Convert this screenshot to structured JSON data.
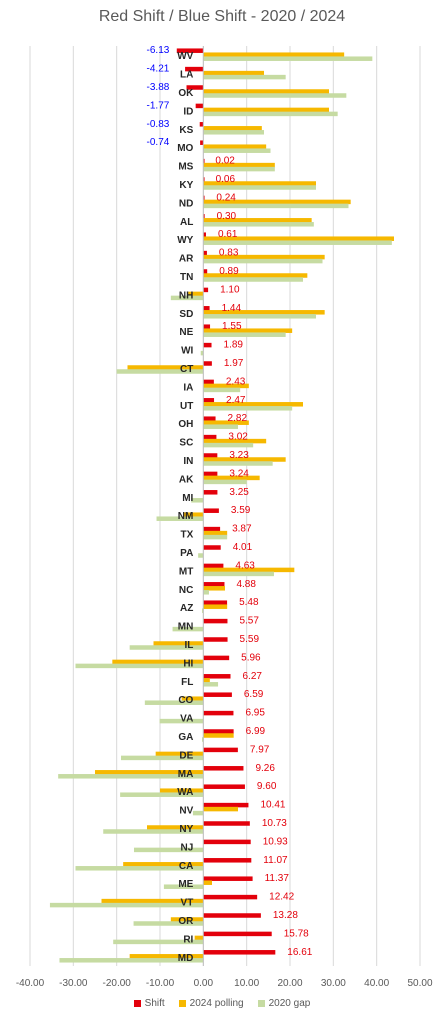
{
  "chart_data": {
    "type": "bar",
    "title": "Red Shift / Blue Shift - 2020 / 2024",
    "xlim": [
      -40,
      50
    ],
    "xticks": [
      "-40.00",
      "-30.00",
      "-20.00",
      "-10.00",
      "0.00",
      "10.00",
      "20.00",
      "30.00",
      "40.00",
      "50.00"
    ],
    "grid": "vertical",
    "legend_position": "bottom",
    "categories": [
      "WV",
      "LA",
      "OK",
      "ID",
      "KS",
      "MO",
      "MS",
      "KY",
      "ND",
      "AL",
      "WY",
      "AR",
      "TN",
      "NH",
      "SD",
      "NE",
      "WI",
      "CT",
      "IA",
      "UT",
      "OH",
      "SC",
      "IN",
      "AK",
      "MI",
      "NM",
      "TX",
      "PA",
      "MT",
      "NC",
      "AZ",
      "MN",
      "IL",
      "HI",
      "FL",
      "CO",
      "VA",
      "GA",
      "DE",
      "MA",
      "WA",
      "NV",
      "NY",
      "NJ",
      "CA",
      "ME",
      "VT",
      "OR",
      "RI",
      "MD"
    ],
    "shift_labels": [
      "-6.13",
      "-4.21",
      "-3.88",
      "-1.77",
      "-0.83",
      "-0.74",
      "0.02",
      "0.06",
      "0.24",
      "0.30",
      "0.61",
      "0.83",
      "0.89",
      "1.10",
      "1.44",
      "1.55",
      "1.89",
      "1.97",
      "2.43",
      "2.47",
      "2.82",
      "3.02",
      "3.23",
      "3.24",
      "3.25",
      "3.59",
      "3.87",
      "4.01",
      "4.63",
      "4.88",
      "5.48",
      "5.57",
      "5.59",
      "5.96",
      "6.27",
      "6.59",
      "6.95",
      "6.99",
      "7.97",
      "9.26",
      "9.60",
      "10.41",
      "10.73",
      "10.93",
      "11.07",
      "11.37",
      "12.42",
      "13.28",
      "15.78",
      "16.61"
    ],
    "series": [
      {
        "name": "Shift",
        "color": "#e3000b",
        "values": [
          -6.13,
          -4.21,
          -3.88,
          -1.77,
          -0.83,
          -0.74,
          0.02,
          0.06,
          0.24,
          0.3,
          0.61,
          0.83,
          0.89,
          1.1,
          1.44,
          1.55,
          1.89,
          1.97,
          2.43,
          2.47,
          2.82,
          3.02,
          3.23,
          3.24,
          3.25,
          3.59,
          3.87,
          4.01,
          4.63,
          4.88,
          5.48,
          5.57,
          5.59,
          5.96,
          6.27,
          6.59,
          6.95,
          6.99,
          7.97,
          9.26,
          9.6,
          10.41,
          10.73,
          10.93,
          11.07,
          11.37,
          12.42,
          13.28,
          15.78,
          16.61
        ]
      },
      {
        "name": "2024 polling",
        "color": "#f6b800",
        "values": [
          32.5,
          14,
          29,
          29,
          13.5,
          14.5,
          16.5,
          26,
          34,
          25,
          44,
          28,
          24,
          -3.5,
          28,
          20.5,
          0,
          -17.5,
          10.5,
          23,
          10.5,
          14.5,
          19,
          13,
          0,
          -4.5,
          5.5,
          0,
          21,
          5,
          5.5,
          0,
          -11.5,
          -21,
          1.5,
          -5,
          0,
          7,
          -11,
          -25,
          -10,
          8,
          -13,
          0,
          -18.5,
          2,
          -23.5,
          -7.5,
          -2,
          -17
        ]
      },
      {
        "name": "2020 gap",
        "color": "#c6dba2",
        "values": [
          39,
          19,
          33,
          31,
          14,
          15.5,
          16.5,
          26,
          33.5,
          25.5,
          43.5,
          27.5,
          23,
          -7.5,
          26,
          19,
          -0.6,
          -20,
          8.5,
          20.5,
          8,
          11.5,
          16,
          10,
          -2.8,
          -10.8,
          5.5,
          -1.2,
          16.3,
          1.3,
          -0.3,
          -7.1,
          -17,
          -29.5,
          3.4,
          -13.5,
          -10.1,
          -0.3,
          -19,
          -33.5,
          -19.2,
          -2.4,
          -23.1,
          -16,
          -29.5,
          -9.1,
          -35.4,
          -16.1,
          -20.8,
          -33.2
        ]
      }
    ]
  }
}
